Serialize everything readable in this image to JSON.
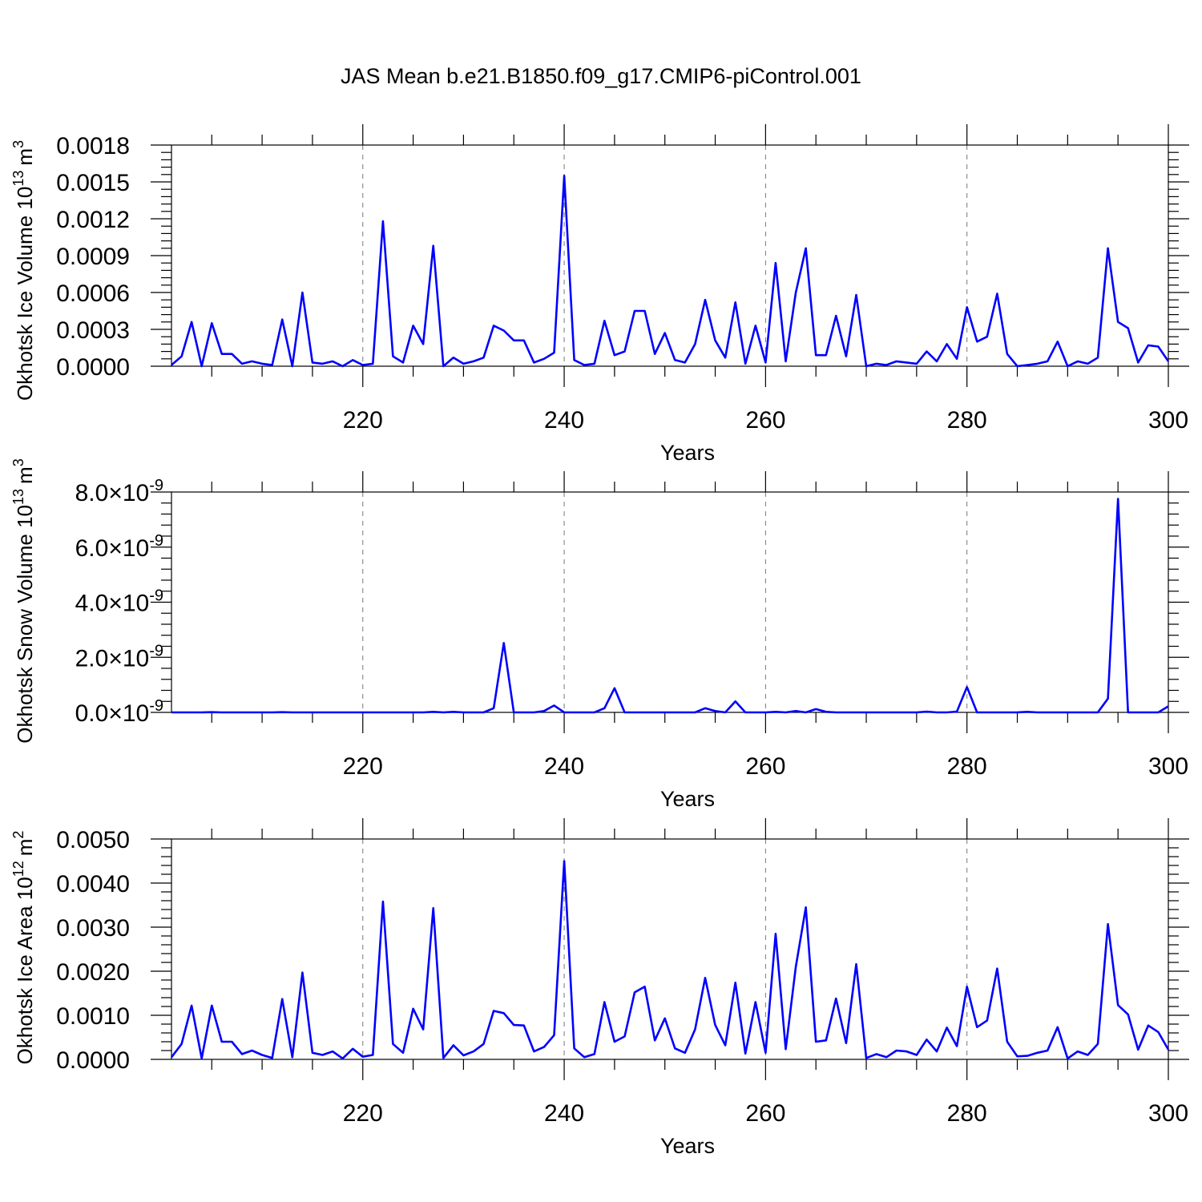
{
  "figure": {
    "title": "JAS Mean b.e21.B1850.f09_g17.CMIP6-piControl.001"
  },
  "chart_data": [
    {
      "type": "line",
      "title": "",
      "xlabel": "Years",
      "ylabel": "Okhotsk Ice Volume 10",
      "ylabel_exp": "13",
      "ylabel_unit": "m",
      "ylabel_unit_exp": "3",
      "xlim": [
        201,
        300
      ],
      "ylim": [
        0,
        0.0018
      ],
      "xticks": [
        220,
        240,
        260,
        280,
        300
      ],
      "xtick_labels": [
        "220",
        "240",
        "260",
        "280",
        "300"
      ],
      "yticks": [
        0,
        0.0003,
        0.0006,
        0.0009,
        0.0012,
        0.0015,
        0.0018
      ],
      "ytick_labels": [
        "0.0000",
        "0.0003",
        "0.0006",
        "0.0009",
        "0.0012",
        "0.0015",
        "0.0018"
      ],
      "ytick_format": "plain",
      "grid_x": [
        220,
        240,
        260,
        280
      ],
      "series": [
        {
          "color": "#0000ff",
          "x_start": 201,
          "values": [
            1e-05,
            8e-05,
            0.00036,
            0.0,
            0.00035,
            0.0001,
            0.0001,
            2e-05,
            4e-05,
            2e-05,
            1e-05,
            0.00038,
            0.0,
            0.0006,
            3e-05,
            2e-05,
            4e-05,
            0.0,
            5e-05,
            1e-05,
            2e-05,
            0.00118,
            8e-05,
            3e-05,
            0.00033,
            0.00018,
            0.00098,
            0.0,
            7e-05,
            2e-05,
            4e-05,
            7e-05,
            0.00033,
            0.00029,
            0.00021,
            0.00021,
            3e-05,
            6e-05,
            0.00011,
            0.00155,
            5e-05,
            1e-05,
            2e-05,
            0.00037,
            9e-05,
            0.00012,
            0.00045,
            0.00045,
            0.0001,
            0.00027,
            5e-05,
            3e-05,
            0.00018,
            0.00054,
            0.00021,
            7e-05,
            0.00052,
            2e-05,
            0.00033,
            3e-05,
            0.00084,
            4e-05,
            0.0006,
            0.00096,
            9e-05,
            9e-05,
            0.00041,
            8e-05,
            0.00058,
            0.0,
            2e-05,
            1e-05,
            4e-05,
            3e-05,
            2e-05,
            0.00012,
            4e-05,
            0.00018,
            6e-05,
            0.00048,
            0.0002,
            0.00024,
            0.00059,
            0.0001,
            0.0,
            1e-05,
            2e-05,
            4e-05,
            0.0002,
            0.0,
            4e-05,
            2e-05,
            7e-05,
            0.00096,
            0.00036,
            0.00031,
            3e-05,
            0.00017,
            0.00016,
            4e-05
          ]
        }
      ]
    },
    {
      "type": "line",
      "title": "",
      "xlabel": "Years",
      "ylabel": "Okhotsk Snow Volume 10",
      "ylabel_exp": "13",
      "ylabel_unit": "m",
      "ylabel_unit_exp": "3",
      "xlim": [
        201,
        300
      ],
      "ylim": [
        0,
        8e-09
      ],
      "xticks": [
        220,
        240,
        260,
        280,
        300
      ],
      "xtick_labels": [
        "220",
        "240",
        "260",
        "280",
        "300"
      ],
      "yticks": [
        0,
        2e-09,
        4e-09,
        6e-09,
        8e-09
      ],
      "ytick_labels": [
        "0.0",
        "2.0",
        "4.0",
        "6.0",
        "8.0"
      ],
      "ytick_format": "sci",
      "ytick_sci_exp": "-9",
      "grid_x": [
        220,
        240,
        260,
        280
      ],
      "series": [
        {
          "color": "#0000ff",
          "x_start": 201,
          "values": [
            0,
            0,
            0,
            0,
            1e-11,
            0,
            0,
            0,
            0,
            0,
            0,
            1e-11,
            0,
            0,
            0,
            0,
            0,
            0,
            0,
            0,
            0,
            0,
            0,
            0,
            0,
            0,
            2e-11,
            0,
            2e-11,
            0,
            0,
            0,
            1.5e-10,
            2.52e-09,
            0,
            0,
            0,
            5e-11,
            2.5e-10,
            0,
            0,
            0,
            0,
            1.5e-10,
            8.8e-10,
            0,
            0,
            0,
            0,
            0,
            0,
            0,
            0,
            1.5e-10,
            5e-11,
            0,
            4e-10,
            0,
            0,
            0,
            2e-11,
            0,
            5e-11,
            0,
            1.2e-10,
            2e-11,
            0,
            0,
            0,
            0,
            0,
            0,
            0,
            0,
            0,
            3e-11,
            0,
            0,
            3e-11,
            9.2e-10,
            0,
            0,
            0,
            0,
            0,
            2e-11,
            0,
            0,
            0,
            0,
            0,
            0,
            0,
            5e-10,
            7.75e-09,
            0,
            0,
            0,
            0,
            2.2e-10
          ]
        }
      ]
    },
    {
      "type": "line",
      "title": "",
      "xlabel": "Years",
      "ylabel": "Okhotsk Ice Area 10",
      "ylabel_exp": "12",
      "ylabel_unit": "m",
      "ylabel_unit_exp": "2",
      "xlim": [
        201,
        300
      ],
      "ylim": [
        0,
        0.005
      ],
      "xticks": [
        220,
        240,
        260,
        280,
        300
      ],
      "xtick_labels": [
        "220",
        "240",
        "260",
        "280",
        "300"
      ],
      "yticks": [
        0,
        0.001,
        0.002,
        0.003,
        0.004,
        0.005
      ],
      "ytick_labels": [
        "0.0000",
        "0.0010",
        "0.0020",
        "0.0030",
        "0.0040",
        "0.0050"
      ],
      "ytick_format": "plain",
      "grid_x": [
        220,
        240,
        260,
        280
      ],
      "series": [
        {
          "color": "#0000ff",
          "x_start": 201,
          "values": [
            5e-05,
            0.00035,
            0.00122,
            2e-05,
            0.00122,
            0.0004,
            0.0004,
            0.00012,
            0.0002,
            0.0001,
            3e-05,
            0.00137,
            5e-05,
            0.00197,
            0.00015,
            0.0001,
            0.00018,
            2e-05,
            0.00024,
            6e-05,
            0.0001,
            0.00358,
            0.00035,
            0.00015,
            0.00115,
            0.00068,
            0.00343,
            3e-05,
            0.00032,
            9e-05,
            0.00018,
            0.00035,
            0.0011,
            0.00105,
            0.00078,
            0.00077,
            0.00018,
            0.00028,
            0.00055,
            0.0045,
            0.00025,
            5e-05,
            0.00012,
            0.0013,
            0.0004,
            0.00052,
            0.00152,
            0.00165,
            0.00043,
            0.00093,
            0.00025,
            0.00015,
            0.00068,
            0.00185,
            0.00078,
            0.00032,
            0.00174,
            0.00013,
            0.0013,
            0.00015,
            0.00285,
            0.00023,
            0.0021,
            0.00345,
            0.0004,
            0.00043,
            0.00138,
            0.00037,
            0.00216,
            3e-05,
            0.00012,
            5e-05,
            0.0002,
            0.00018,
            0.0001,
            0.00045,
            0.00018,
            0.00072,
            0.0003,
            0.00165,
            0.00073,
            0.00088,
            0.00206,
            0.0004,
            7e-05,
            8e-05,
            0.00015,
            0.0002,
            0.00073,
            2e-05,
            0.00018,
            0.0001,
            0.00035,
            0.00307,
            0.00123,
            0.00102,
            0.00022,
            0.00077,
            0.00062,
            0.00022
          ]
        }
      ]
    }
  ]
}
